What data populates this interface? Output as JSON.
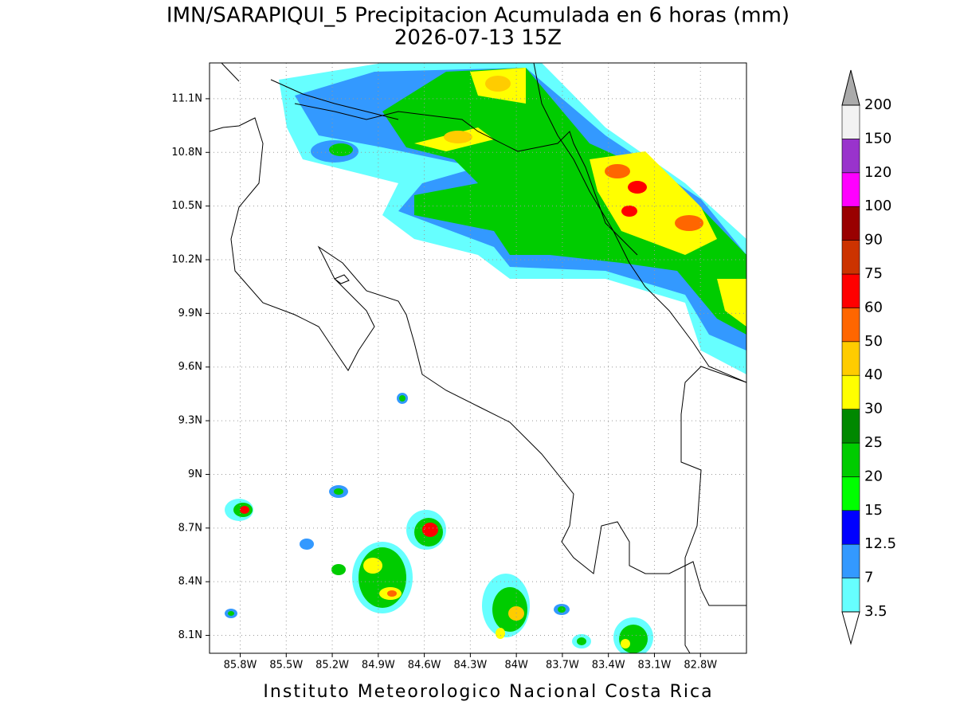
{
  "header": {
    "title": "IMN/SARAPIQUI_5 Precipitacion Acumulada en 6 horas (mm)",
    "subtitle": "2026-07-13 15Z"
  },
  "map": {
    "lat_range": [
      8.0,
      11.3
    ],
    "lon_range": [
      -86.0,
      -82.5
    ],
    "lat_ticks": [
      {
        "value": 11.1,
        "label": "11.1N"
      },
      {
        "value": 10.8,
        "label": "10.8N"
      },
      {
        "value": 10.5,
        "label": "10.5N"
      },
      {
        "value": 10.2,
        "label": "10.2N"
      },
      {
        "value": 9.9,
        "label": "9.9N"
      },
      {
        "value": 9.6,
        "label": "9.6N"
      },
      {
        "value": 9.3,
        "label": "9.3N"
      },
      {
        "value": 9,
        "label": "9N"
      },
      {
        "value": 8.7,
        "label": "8.7N"
      },
      {
        "value": 8.4,
        "label": "8.4N"
      },
      {
        "value": 8.1,
        "label": "8.1N"
      }
    ],
    "lon_ticks": [
      {
        "value": -85.8,
        "label": "85.8W"
      },
      {
        "value": -85.5,
        "label": "85.5W"
      },
      {
        "value": -85.2,
        "label": "85.2W"
      },
      {
        "value": -84.9,
        "label": "84.9W"
      },
      {
        "value": -84.6,
        "label": "84.6W"
      },
      {
        "value": -84.3,
        "label": "84.3W"
      },
      {
        "value": -84,
        "label": "84W"
      },
      {
        "value": -83.7,
        "label": "83.7W"
      },
      {
        "value": -83.4,
        "label": "83.4W"
      },
      {
        "value": -83.1,
        "label": "83.1W"
      },
      {
        "value": -82.8,
        "label": "82.8W"
      }
    ],
    "grid": true
  },
  "colorbar": {
    "levels": [
      3.5,
      7,
      12.5,
      15,
      20,
      25,
      30,
      40,
      50,
      60,
      75,
      90,
      100,
      120,
      150,
      200
    ],
    "colors": [
      "#66ffff",
      "#3399ff",
      "#0000ff",
      "#00ff00",
      "#00cc00",
      "#008800",
      "#ffff00",
      "#ffcc00",
      "#ff6600",
      "#ff0000",
      "#cc3300",
      "#990000",
      "#ff00ff",
      "#9933cc",
      "#f2f2f2"
    ],
    "below_color": "#ffffff",
    "above_color": "#aaaaaa"
  },
  "footer": "Instituto Meteorologico Nacional Costa Rica"
}
